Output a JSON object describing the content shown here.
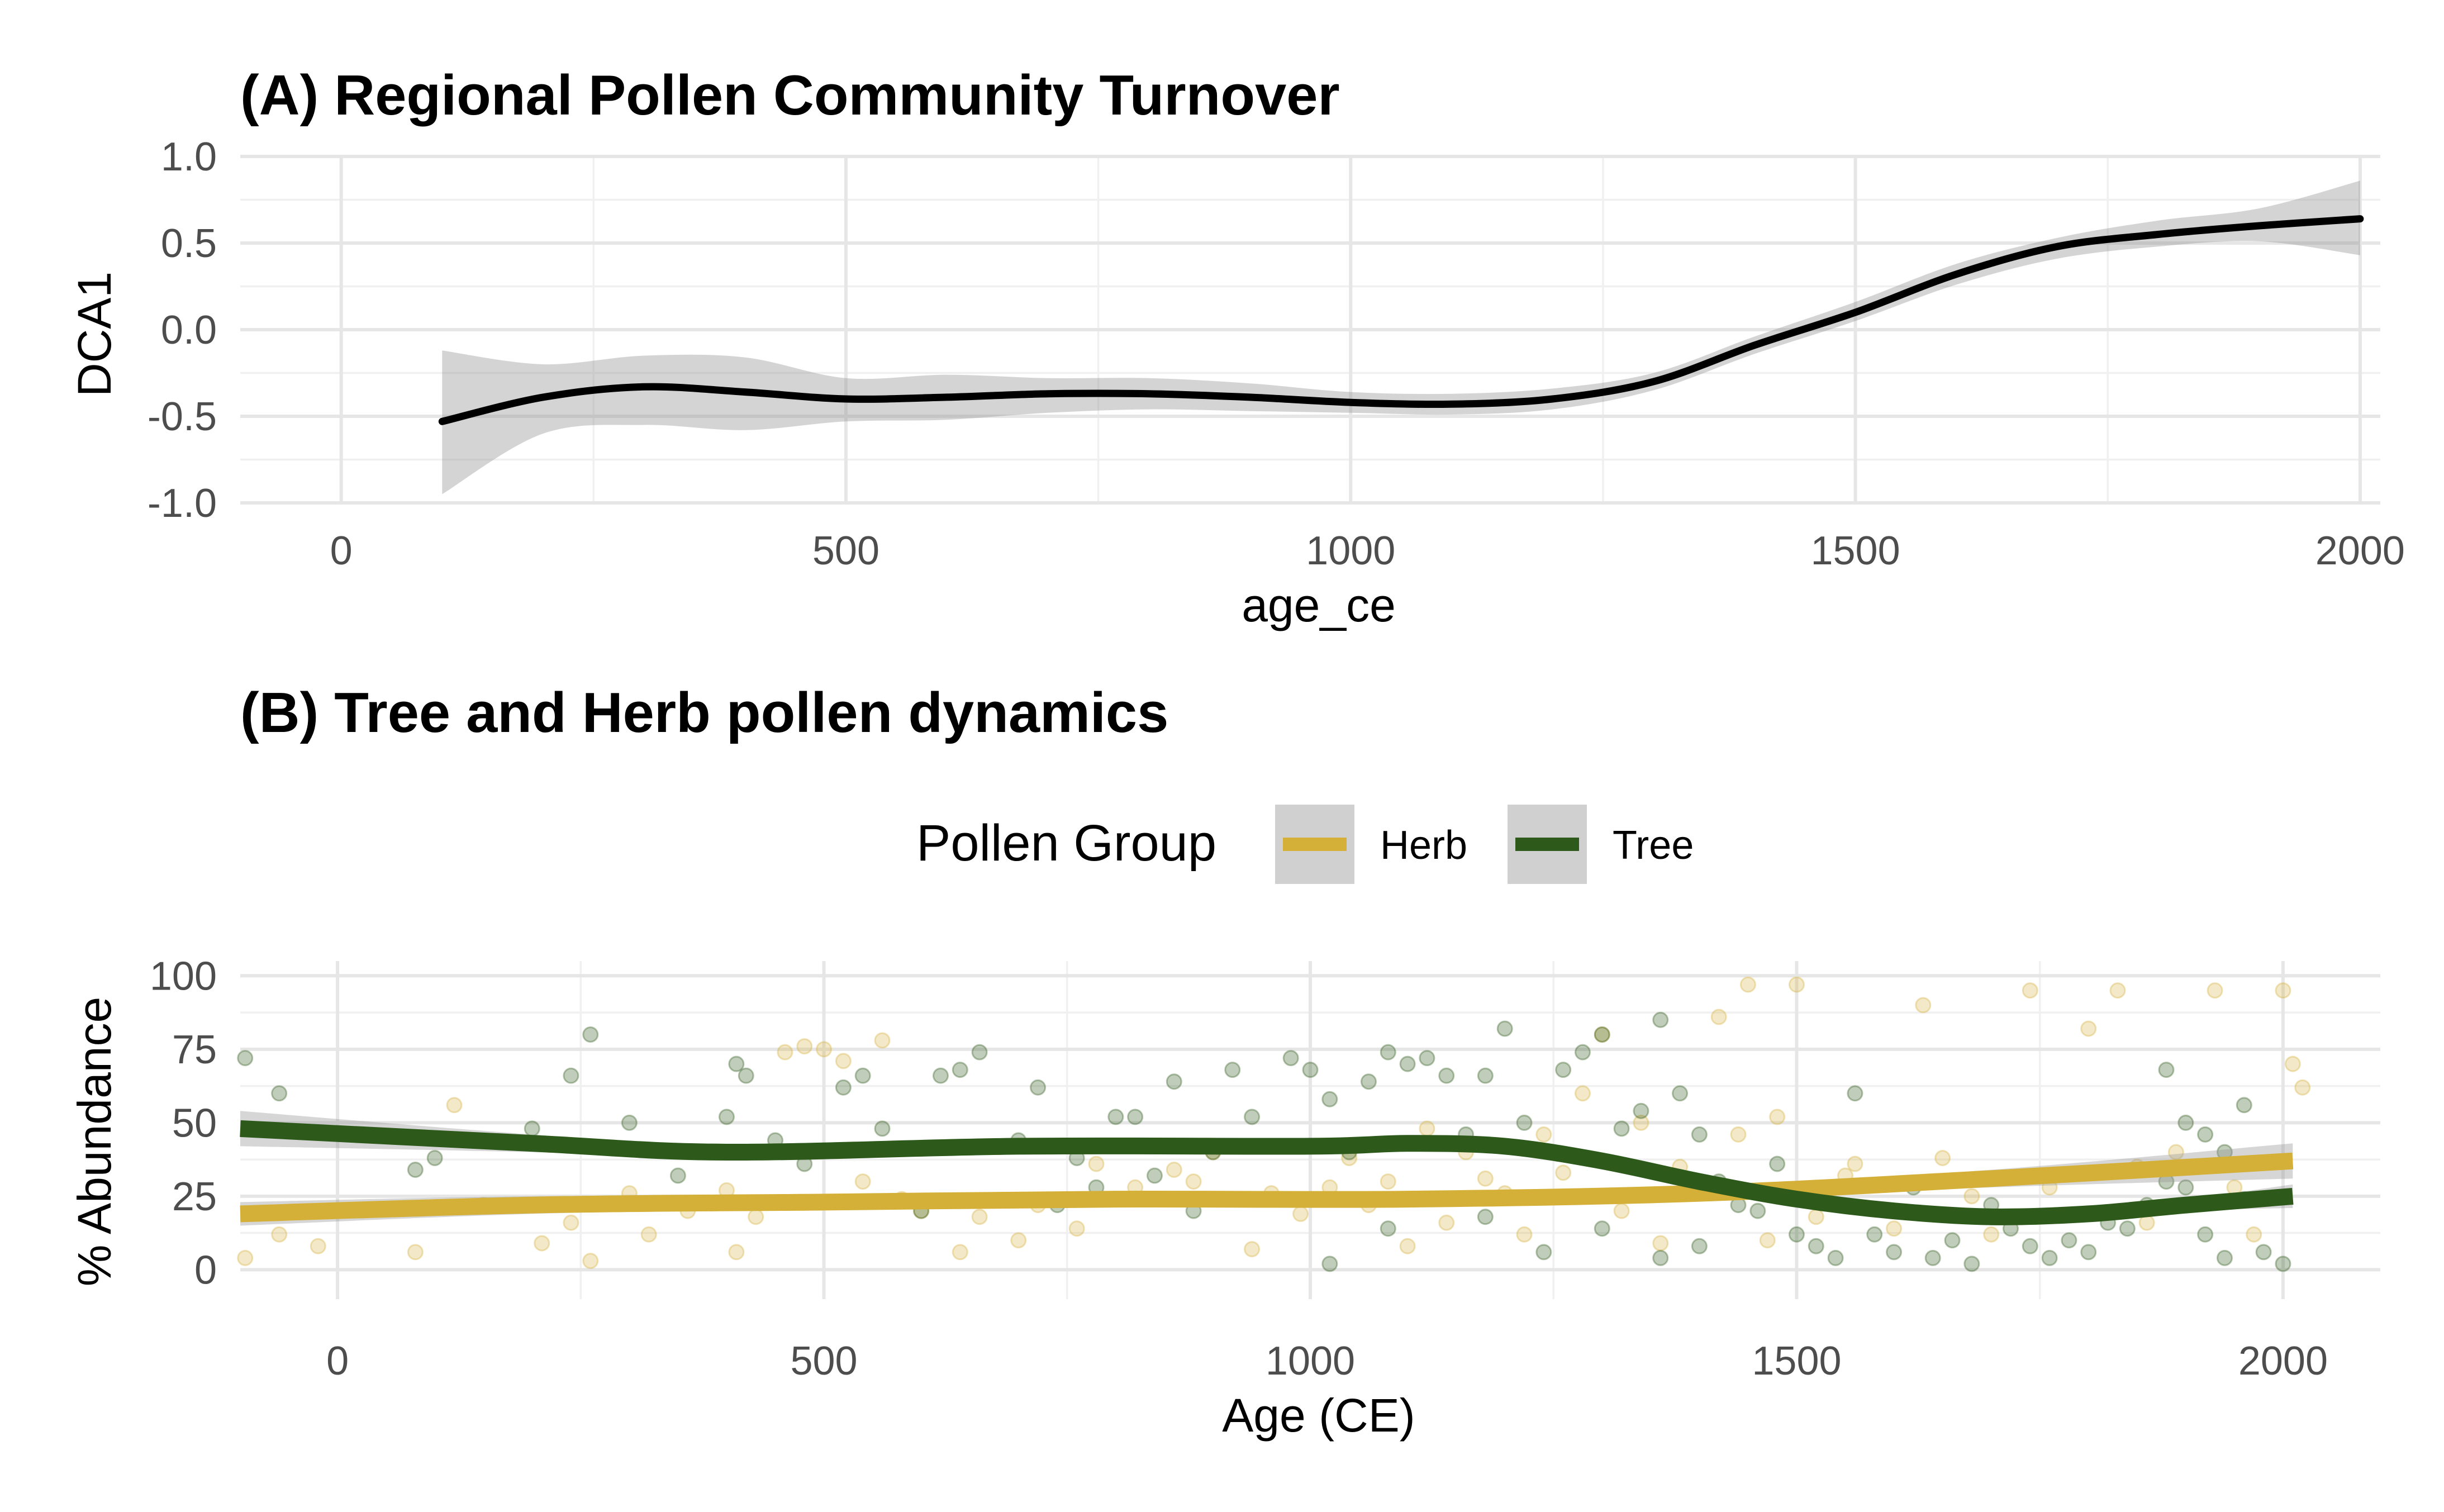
{
  "colors": {
    "tree": "#2d5a1b",
    "herb": "#d4b038",
    "smooth_a": "#000000",
    "ribbon": "#999999"
  },
  "chart_data": [
    {
      "type": "line",
      "title": "(A) Regional Pollen Community Turnover",
      "xlabel": "age_ce",
      "ylabel": "DCA1",
      "xlim": [
        -100,
        2020
      ],
      "ylim": [
        -1.0,
        1.0
      ],
      "x_ticks": [
        0,
        500,
        1000,
        1500,
        2000
      ],
      "y_ticks": [
        -1.0,
        -0.5,
        0.0,
        0.5,
        1.0
      ],
      "y_tick_labels": [
        "-1.0",
        "-0.5",
        "0.0",
        "0.5",
        "1.0"
      ],
      "grid": true,
      "series": [
        {
          "x": [
            100,
            200,
            300,
            400,
            500,
            600,
            700,
            800,
            900,
            1000,
            1100,
            1200,
            1300,
            1400,
            1500,
            1600,
            1700,
            1800,
            1900,
            2000
          ],
          "y": [
            -0.53,
            -0.39,
            -0.33,
            -0.36,
            -0.4,
            -0.39,
            -0.37,
            -0.37,
            -0.39,
            -0.42,
            -0.43,
            -0.4,
            -0.3,
            -0.09,
            0.1,
            0.32,
            0.48,
            0.55,
            0.6,
            0.64
          ],
          "lower": [
            -0.95,
            -0.6,
            -0.55,
            -0.58,
            -0.53,
            -0.52,
            -0.48,
            -0.46,
            -0.47,
            -0.48,
            -0.49,
            -0.46,
            -0.35,
            -0.14,
            0.05,
            0.26,
            0.41,
            0.48,
            0.51,
            0.43
          ],
          "upper": [
            -0.12,
            -0.2,
            -0.15,
            -0.16,
            -0.28,
            -0.26,
            -0.28,
            -0.28,
            -0.31,
            -0.36,
            -0.37,
            -0.34,
            -0.25,
            -0.04,
            0.16,
            0.38,
            0.53,
            0.63,
            0.7,
            0.86
          ]
        }
      ]
    },
    {
      "type": "scatter",
      "title": "(B) Tree and Herb pollen dynamics",
      "xlabel": "Age (CE)",
      "ylabel": "% Abundance",
      "xlim": [
        -100,
        2100
      ],
      "ylim": [
        -10,
        105
      ],
      "x_ticks": [
        0,
        500,
        1000,
        1500,
        2000
      ],
      "y_ticks": [
        0,
        25,
        50,
        75,
        100
      ],
      "grid": true,
      "legend": {
        "title": "Pollen Group",
        "position": "top",
        "entries": [
          "Herb",
          "Tree"
        ]
      },
      "series": [
        {
          "name": "Herb",
          "smooth_x": [
            -100,
            200,
            500,
            800,
            1100,
            1400,
            1700,
            2010
          ],
          "smooth_y": [
            19,
            22,
            23,
            24,
            24,
            26,
            31,
            37
          ],
          "smooth_lower": [
            15,
            19,
            21,
            22,
            22,
            24,
            28,
            31
          ],
          "smooth_upper": [
            23,
            25,
            25,
            26,
            26,
            28,
            34,
            43
          ],
          "points": [
            [
              -95,
              4
            ],
            [
              -60,
              12
            ],
            [
              -20,
              8
            ],
            [
              80,
              6
            ],
            [
              210,
              9
            ],
            [
              260,
              3
            ],
            [
              320,
              12
            ],
            [
              400,
              27
            ],
            [
              410,
              6
            ],
            [
              430,
              18
            ],
            [
              460,
              74
            ],
            [
              480,
              76
            ],
            [
              500,
              75
            ],
            [
              520,
              71
            ],
            [
              560,
              78
            ],
            [
              600,
              20
            ],
            [
              640,
              6
            ],
            [
              700,
              10
            ],
            [
              760,
              14
            ],
            [
              820,
              28
            ],
            [
              880,
              30
            ],
            [
              940,
              7
            ],
            [
              990,
              19
            ],
            [
              1020,
              28
            ],
            [
              1060,
              22
            ],
            [
              1100,
              8
            ],
            [
              1140,
              16
            ],
            [
              1180,
              31
            ],
            [
              1220,
              12
            ],
            [
              1260,
              33
            ],
            [
              1300,
              80
            ],
            [
              1320,
              20
            ],
            [
              1360,
              9
            ],
            [
              1380,
              35
            ],
            [
              1420,
              86
            ],
            [
              1450,
              97
            ],
            [
              1470,
              10
            ],
            [
              1500,
              97
            ],
            [
              1520,
              18
            ],
            [
              1560,
              36
            ],
            [
              1600,
              14
            ],
            [
              1630,
              90
            ],
            [
              1680,
              25
            ],
            [
              1700,
              12
            ],
            [
              1740,
              95
            ],
            [
              1760,
              28
            ],
            [
              1800,
              82
            ],
            [
              1830,
              95
            ],
            [
              1860,
              16
            ],
            [
              1890,
              40
            ],
            [
              1930,
              95
            ],
            [
              1970,
              12
            ],
            [
              2000,
              95
            ],
            [
              2010,
              70
            ],
            [
              2020,
              62
            ],
            [
              1950,
              28
            ],
            [
              1900,
              22
            ],
            [
              1850,
              35
            ],
            [
              1650,
              38
            ],
            [
              1550,
              32
            ],
            [
              1480,
              52
            ],
            [
              1440,
              46
            ],
            [
              1340,
              50
            ],
            [
              1280,
              60
            ],
            [
              1240,
              46
            ],
            [
              1200,
              26
            ],
            [
              1160,
              40
            ],
            [
              1120,
              48
            ],
            [
              1080,
              30
            ],
            [
              1040,
              38
            ],
            [
              960,
              26
            ],
            [
              900,
              40
            ],
            [
              860,
              34
            ],
            [
              780,
              36
            ],
            [
              720,
              22
            ],
            [
              660,
              18
            ],
            [
              580,
              24
            ],
            [
              540,
              30
            ],
            [
              360,
              20
            ],
            [
              300,
              26
            ],
            [
              240,
              16
            ],
            [
              150,
              22
            ],
            [
              120,
              56
            ]
          ]
        },
        {
          "name": "Tree",
          "smooth_x": [
            -100,
            200,
            400,
            700,
            1000,
            1100,
            1200,
            1300,
            1400,
            1500,
            1600,
            1700,
            1800,
            1900,
            2010
          ],
          "smooth_y": [
            48,
            43,
            40,
            42,
            42,
            43,
            42,
            37,
            30,
            24,
            20,
            18,
            19,
            22,
            25
          ],
          "smooth_lower": [
            42,
            40,
            38,
            40,
            40,
            41,
            40,
            35,
            28,
            22,
            18,
            16,
            17,
            20,
            21
          ],
          "smooth_upper": [
            54,
            46,
            42,
            44,
            44,
            45,
            44,
            39,
            32,
            26,
            22,
            20,
            21,
            24,
            29
          ],
          "points": [
            [
              -95,
              72
            ],
            [
              -60,
              60
            ],
            [
              80,
              34
            ],
            [
              100,
              38
            ],
            [
              200,
              48
            ],
            [
              240,
              66
            ],
            [
              260,
              80
            ],
            [
              300,
              50
            ],
            [
              400,
              52
            ],
            [
              410,
              70
            ],
            [
              420,
              66
            ],
            [
              480,
              36
            ],
            [
              520,
              62
            ],
            [
              540,
              66
            ],
            [
              560,
              48
            ],
            [
              620,
              66
            ],
            [
              640,
              68
            ],
            [
              660,
              74
            ],
            [
              700,
              44
            ],
            [
              720,
              62
            ],
            [
              760,
              38
            ],
            [
              800,
              52
            ],
            [
              820,
              52
            ],
            [
              860,
              64
            ],
            [
              900,
              40
            ],
            [
              920,
              68
            ],
            [
              940,
              52
            ],
            [
              980,
              72
            ],
            [
              1000,
              68
            ],
            [
              1020,
              58
            ],
            [
              1040,
              40
            ],
            [
              1060,
              64
            ],
            [
              1080,
              74
            ],
            [
              1100,
              70
            ],
            [
              1120,
              72
            ],
            [
              1140,
              66
            ],
            [
              1160,
              46
            ],
            [
              1180,
              66
            ],
            [
              1200,
              82
            ],
            [
              1220,
              50
            ],
            [
              1260,
              68
            ],
            [
              1280,
              74
            ],
            [
              1300,
              80
            ],
            [
              1320,
              48
            ],
            [
              1340,
              54
            ],
            [
              1360,
              85
            ],
            [
              1380,
              60
            ],
            [
              1400,
              46
            ],
            [
              1420,
              30
            ],
            [
              1440,
              22
            ],
            [
              1480,
              36
            ],
            [
              1500,
              12
            ],
            [
              1520,
              8
            ],
            [
              1540,
              4
            ],
            [
              1560,
              60
            ],
            [
              1600,
              6
            ],
            [
              1640,
              4
            ],
            [
              1660,
              10
            ],
            [
              1680,
              2
            ],
            [
              1720,
              14
            ],
            [
              1740,
              8
            ],
            [
              1760,
              4
            ],
            [
              1800,
              6
            ],
            [
              1840,
              14
            ],
            [
              1880,
              68
            ],
            [
              1900,
              50
            ],
            [
              1920,
              46
            ],
            [
              1940,
              40
            ],
            [
              1960,
              56
            ],
            [
              1980,
              6
            ],
            [
              2000,
              2
            ],
            [
              1020,
              2
            ],
            [
              1080,
              14
            ],
            [
              1180,
              18
            ],
            [
              1240,
              6
            ],
            [
              1300,
              14
            ],
            [
              1360,
              4
            ],
            [
              1400,
              8
            ],
            [
              1460,
              20
            ],
            [
              1580,
              12
            ],
            [
              1620,
              28
            ],
            [
              1700,
              22
            ],
            [
              1780,
              10
            ],
            [
              1860,
              22
            ],
            [
              1900,
              28
            ],
            [
              1940,
              4
            ],
            [
              1960,
              24
            ],
            [
              1920,
              12
            ],
            [
              1880,
              30
            ],
            [
              1820,
              16
            ],
            [
              880,
              20
            ],
            [
              840,
              32
            ],
            [
              780,
              28
            ],
            [
              740,
              22
            ],
            [
              600,
              20
            ],
            [
              450,
              44
            ],
            [
              350,
              32
            ]
          ]
        }
      ]
    }
  ]
}
